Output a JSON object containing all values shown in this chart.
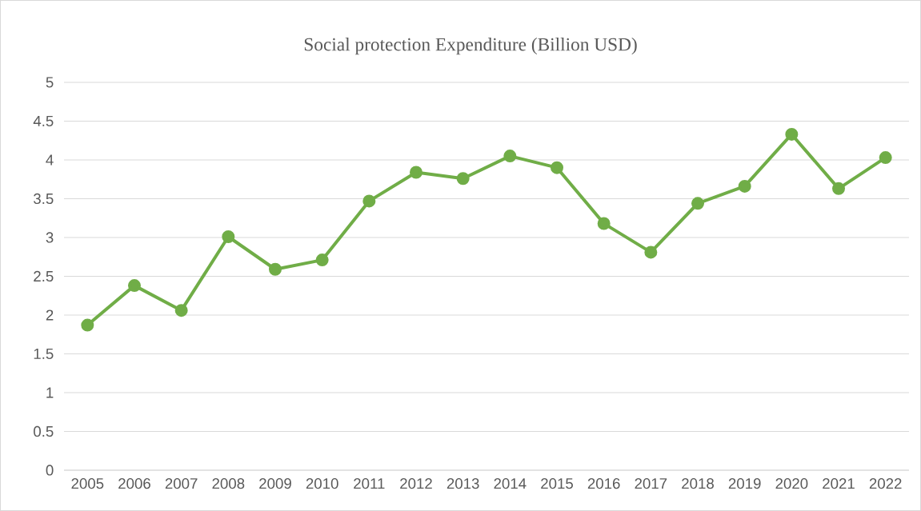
{
  "chart_data": {
    "type": "line",
    "title": "Social protection Expenditure (Billion USD)",
    "categories": [
      "2005",
      "2006",
      "2007",
      "2008",
      "2009",
      "2010",
      "2011",
      "2012",
      "2013",
      "2014",
      "2015",
      "2016",
      "2017",
      "2018",
      "2019",
      "2020",
      "2021",
      "2022"
    ],
    "series": [
      {
        "color": "#70ad47",
        "values": [
          1.87,
          2.38,
          2.06,
          3.01,
          2.59,
          2.71,
          3.47,
          3.84,
          3.76,
          4.05,
          3.9,
          3.18,
          2.81,
          3.44,
          3.66,
          4.33,
          3.63,
          4.03
        ]
      }
    ],
    "ylim": [
      0,
      5
    ],
    "yticks": [
      0,
      0.5,
      1,
      1.5,
      2,
      2.5,
      3,
      3.5,
      4,
      4.5,
      5
    ],
    "grid": "y",
    "marker": "circle",
    "line_style": "solid"
  }
}
